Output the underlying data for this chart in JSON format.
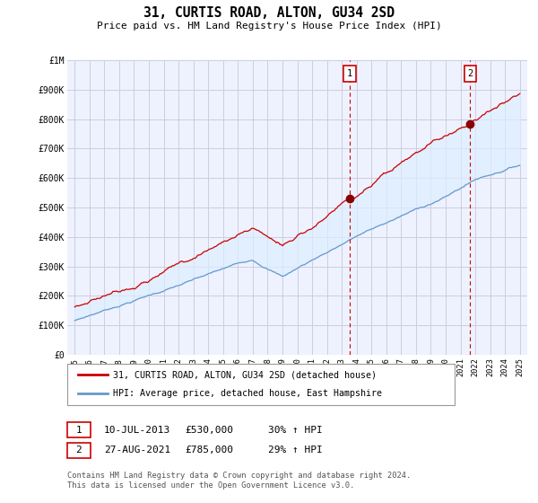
{
  "title": "31, CURTIS ROAD, ALTON, GU34 2SD",
  "subtitle": "Price paid vs. HM Land Registry's House Price Index (HPI)",
  "red_label": "31, CURTIS ROAD, ALTON, GU34 2SD (detached house)",
  "blue_label": "HPI: Average price, detached house, East Hampshire",
  "annotation1_date": "10-JUL-2013",
  "annotation1_price": "£530,000",
  "annotation1_hpi": "30% ↑ HPI",
  "annotation1_year": 2013.53,
  "annotation1_value": 530000,
  "annotation2_date": "27-AUG-2021",
  "annotation2_price": "£785,000",
  "annotation2_hpi": "29% ↑ HPI",
  "annotation2_year": 2021.65,
  "annotation2_value": 785000,
  "footer": "Contains HM Land Registry data © Crown copyright and database right 2024.\nThis data is licensed under the Open Government Licence v3.0.",
  "ylim": [
    0,
    1000000
  ],
  "xlim_start": 1994.5,
  "xlim_end": 2025.5,
  "yticks": [
    0,
    100000,
    200000,
    300000,
    400000,
    500000,
    600000,
    700000,
    800000,
    900000,
    1000000
  ],
  "ytick_labels": [
    "£0",
    "£100K",
    "£200K",
    "£300K",
    "£400K",
    "£500K",
    "£600K",
    "£700K",
    "£800K",
    "£900K",
    "£1M"
  ],
  "xticks": [
    1995,
    1996,
    1997,
    1998,
    1999,
    2000,
    2001,
    2002,
    2003,
    2004,
    2005,
    2006,
    2007,
    2008,
    2009,
    2010,
    2011,
    2012,
    2013,
    2014,
    2015,
    2016,
    2017,
    2018,
    2019,
    2020,
    2021,
    2022,
    2023,
    2024,
    2025
  ],
  "red_color": "#cc0000",
  "blue_color": "#6699cc",
  "fill_color": "#ddeeff",
  "bg_color": "#eef2ff",
  "plot_bg": "#ffffff",
  "grid_color": "#ccccdd",
  "ann_line_color": "#cc0000"
}
